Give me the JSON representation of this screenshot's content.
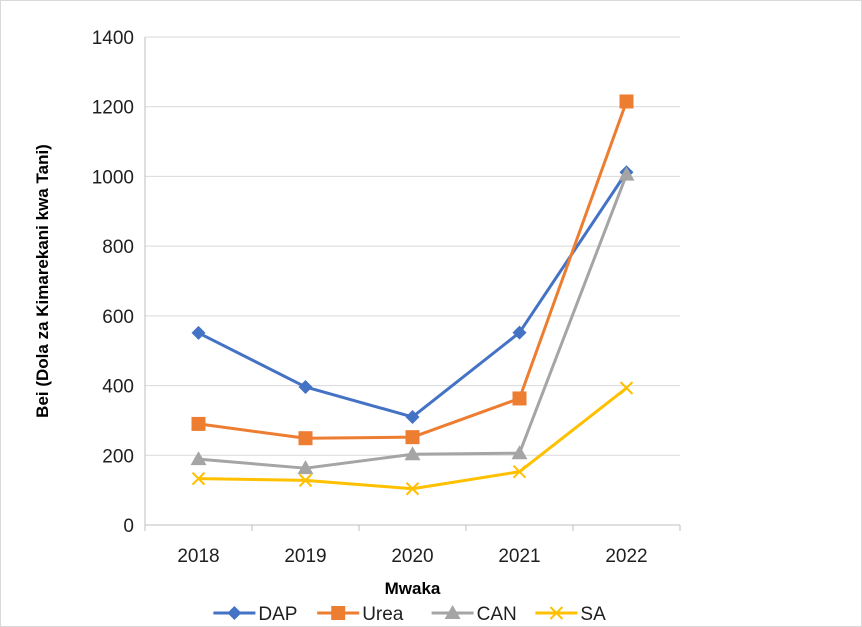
{
  "chart_data": {
    "type": "line",
    "categories": [
      "2018",
      "2019",
      "2020",
      "2021",
      "2022"
    ],
    "xlabel": "Mwaka",
    "ylabel": "Bei (Dola za Kimarekani kwa Tani)",
    "ylim": [
      0,
      1400
    ],
    "yticks": [
      0,
      200,
      400,
      600,
      800,
      1000,
      1200,
      1400
    ],
    "grid": true,
    "legend_position": "bottom",
    "series": [
      {
        "name": "DAP",
        "values": [
          551,
          396,
          310,
          552,
          1012
        ],
        "color": "#4472c4",
        "marker": "diamond"
      },
      {
        "name": "Urea",
        "values": [
          290,
          249,
          252,
          363,
          1215
        ],
        "color": "#ed7d31",
        "marker": "square"
      },
      {
        "name": "CAN",
        "values": [
          189,
          163,
          203,
          206,
          1005
        ],
        "color": "#a5a5a5",
        "marker": "triangle"
      },
      {
        "name": "SA",
        "values": [
          133,
          128,
          104,
          153,
          393
        ],
        "color": "#ffc000",
        "marker": "x"
      }
    ]
  }
}
